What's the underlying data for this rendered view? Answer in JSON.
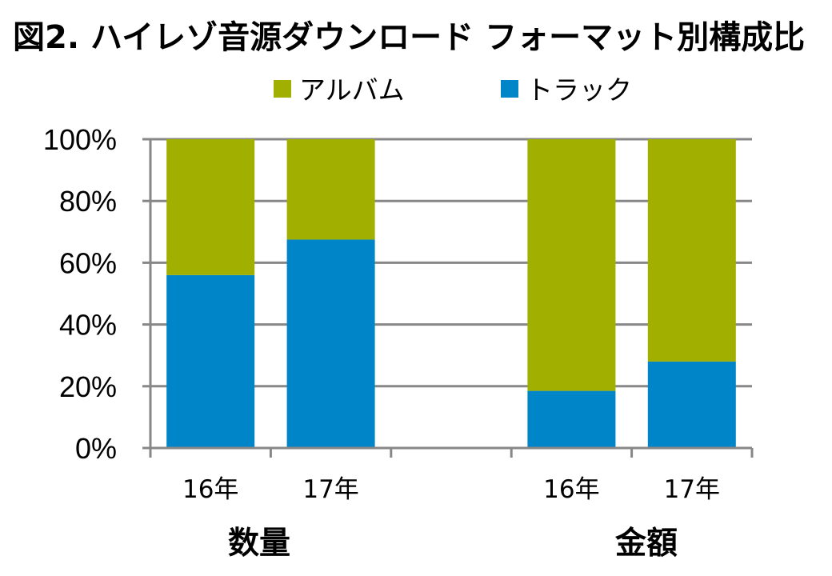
{
  "chart_data": {
    "type": "bar",
    "stacked": true,
    "title": "図2. ハイレゾ音源ダウンロード フォーマット別構成比",
    "legend_position": "top",
    "categories": [
      "16年",
      "17年",
      "16年",
      "17年"
    ],
    "groups": [
      {
        "label": "数量",
        "categories": [
          "16年",
          "17年"
        ]
      },
      {
        "label": "金額",
        "categories": [
          "16年",
          "17年"
        ]
      }
    ],
    "series": [
      {
        "name": "トラック",
        "color": "#0085C8",
        "values": [
          56,
          67.5,
          18.5,
          28
        ]
      },
      {
        "name": "アルバム",
        "color": "#A1AF00",
        "values": [
          44,
          32.5,
          81.5,
          72
        ]
      }
    ],
    "y_ticks": [
      "0%",
      "20%",
      "40%",
      "60%",
      "80%",
      "100%"
    ],
    "ylim": [
      0,
      100
    ],
    "grid": true,
    "gridline_color": "#878787"
  }
}
